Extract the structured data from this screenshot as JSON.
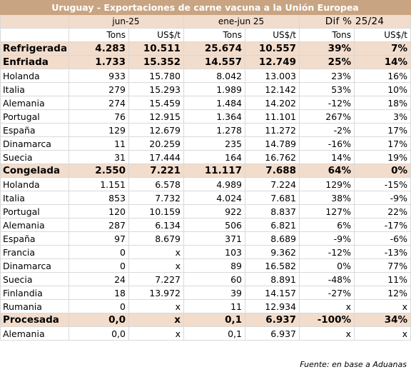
{
  "title": "Uruguay - Exportaciones de carne vacuna a la Unión Europea",
  "periods": {
    "p1": "jun-25",
    "p2": "ene-jun 25",
    "dif": "Dif % 25/24"
  },
  "units": {
    "tons": "Tons",
    "usd": "US$/t"
  },
  "rows": [
    {
      "type": "cat",
      "name": "Refrigerada",
      "v": [
        "4.283",
        "10.511",
        "25.674",
        "10.557",
        "39%",
        "7%"
      ]
    },
    {
      "type": "cat",
      "name": "Enfriada",
      "v": [
        "1.733",
        "15.352",
        "14.557",
        "12.749",
        "25%",
        "14%"
      ]
    },
    {
      "type": "row",
      "name": "Holanda",
      "v": [
        "933",
        "15.780",
        "8.042",
        "13.003",
        "23%",
        "16%"
      ]
    },
    {
      "type": "row",
      "name": "Italia",
      "v": [
        "279",
        "15.293",
        "1.989",
        "12.142",
        "53%",
        "10%"
      ]
    },
    {
      "type": "row",
      "name": "Alemania",
      "v": [
        "274",
        "15.459",
        "1.484",
        "14.202",
        "-12%",
        "18%"
      ]
    },
    {
      "type": "row",
      "name": "Portugal",
      "v": [
        "76",
        "12.915",
        "1.364",
        "11.101",
        "267%",
        "3%"
      ]
    },
    {
      "type": "row",
      "name": "España",
      "v": [
        "129",
        "12.679",
        "1.278",
        "11.272",
        "-2%",
        "17%"
      ]
    },
    {
      "type": "row",
      "name": "Dinamarca",
      "v": [
        "11",
        "20.259",
        "235",
        "14.789",
        "-16%",
        "17%"
      ]
    },
    {
      "type": "row",
      "name": "Suecia",
      "v": [
        "31",
        "17.444",
        "164",
        "16.762",
        "14%",
        "19%"
      ]
    },
    {
      "type": "cat",
      "name": "Congelada",
      "v": [
        "2.550",
        "7.221",
        "11.117",
        "7.688",
        "64%",
        "0%"
      ]
    },
    {
      "type": "row",
      "name": "Holanda",
      "v": [
        "1.151",
        "6.578",
        "4.989",
        "7.224",
        "129%",
        "-15%"
      ]
    },
    {
      "type": "row",
      "name": "Italia",
      "v": [
        "853",
        "7.732",
        "4.024",
        "7.681",
        "38%",
        "-9%"
      ]
    },
    {
      "type": "row",
      "name": "Portugal",
      "v": [
        "120",
        "10.159",
        "922",
        "8.837",
        "127%",
        "22%"
      ]
    },
    {
      "type": "row",
      "name": "Alemania",
      "v": [
        "287",
        "6.134",
        "506",
        "6.821",
        "6%",
        "-17%"
      ]
    },
    {
      "type": "row",
      "name": "España",
      "v": [
        "97",
        "8.679",
        "371",
        "8.689",
        "-9%",
        "-6%"
      ]
    },
    {
      "type": "row",
      "name": "Francia",
      "v": [
        "0",
        "x",
        "103",
        "9.362",
        "-12%",
        "-13%"
      ]
    },
    {
      "type": "row",
      "name": "Dinamarca",
      "v": [
        "0",
        "x",
        "89",
        "16.582",
        "0%",
        "77%"
      ]
    },
    {
      "type": "row",
      "name": "Suecia",
      "v": [
        "24",
        "7.227",
        "60",
        "8.891",
        "-48%",
        "11%"
      ]
    },
    {
      "type": "row",
      "name": "Finlandia",
      "v": [
        "18",
        "13.972",
        "39",
        "14.157",
        "-27%",
        "12%"
      ]
    },
    {
      "type": "row",
      "name": "Rumania",
      "v": [
        "0",
        "x",
        "11",
        "12.934",
        "x",
        "x"
      ]
    },
    {
      "type": "cat",
      "name": "Procesada",
      "v": [
        "0,0",
        "x",
        "0,1",
        "6.937",
        "-100%",
        "34%"
      ]
    },
    {
      "type": "row",
      "name": "Alemania",
      "v": [
        "0,0",
        "x",
        "0,1",
        "6.937",
        "x",
        "x"
      ]
    }
  ],
  "source": "Fuente: en base a Aduanas"
}
